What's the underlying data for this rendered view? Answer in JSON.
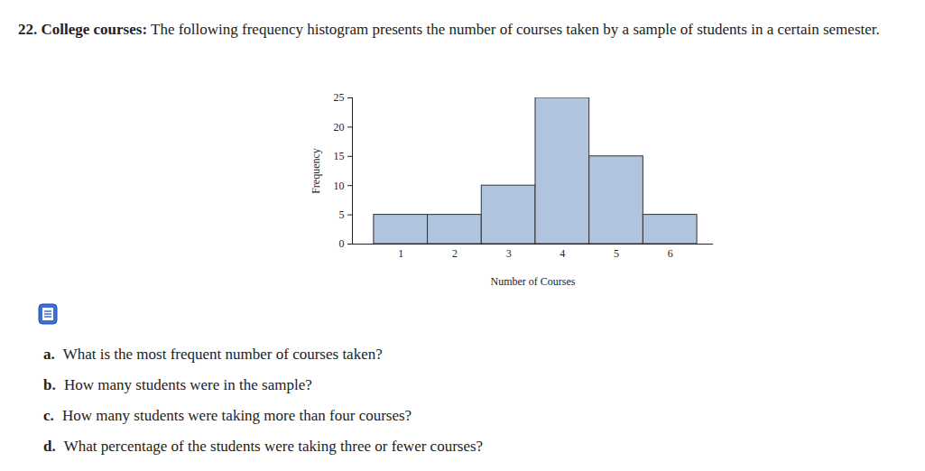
{
  "header": {
    "number": "22.",
    "title": "College courses:",
    "text": "The following frequency histogram presents the number of courses taken by a sample of students in a certain semester."
  },
  "chart_data": {
    "type": "histogram",
    "bins": [
      0.5,
      1.5,
      2.5,
      3.5,
      4.5,
      5.5,
      6.5
    ],
    "values": [
      5,
      5,
      10,
      25,
      15,
      5
    ],
    "color": "#b0c4de",
    "xlabel": "Number of Courses",
    "ylabel": "Frequency",
    "xlim": [
      0.1,
      6.8
    ],
    "xticks": [
      1,
      2,
      3,
      4,
      5,
      6
    ],
    "ylim": [
      0,
      25
    ],
    "yticks": [
      0,
      5,
      10,
      15,
      20,
      25
    ],
    "grid": false
  },
  "questions": [
    {
      "label": "a.",
      "text": "What is the most frequent number of courses taken?"
    },
    {
      "label": "b.",
      "text": "How many students were in the sample?"
    },
    {
      "label": "c.",
      "text": "How many students were taking more than four courses?"
    },
    {
      "label": "d.",
      "text": "What percentage of the students were taking three or fewer courses?"
    }
  ]
}
